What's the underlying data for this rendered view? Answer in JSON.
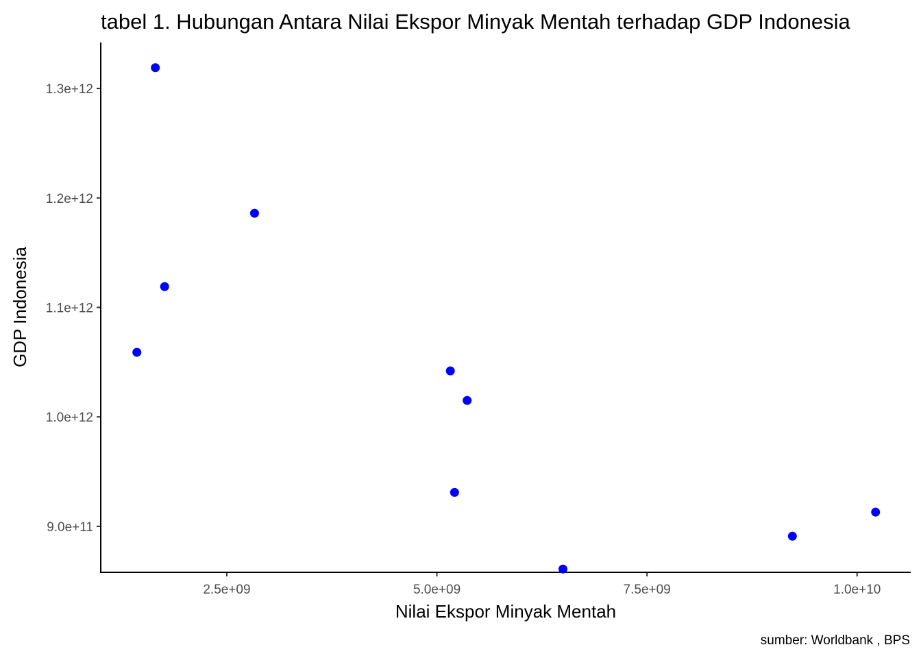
{
  "chart_data": {
    "type": "scatter",
    "title": "tabel 1. Hubungan Antara Nilai Ekspor Minyak Mentah terhadap GDP Indonesia",
    "xlabel": "Nilai Ekspor Minyak Mentah",
    "ylabel": "GDP Indonesia",
    "caption": "sumber: Worldbank , BPS",
    "xlim": [
      1000000000,
      10630000000
    ],
    "ylim": [
      858000000000,
      1342000000000
    ],
    "x_ticks": [
      2500000000,
      5000000000,
      7500000000,
      10000000000
    ],
    "x_tick_labels": [
      "2.5e+09",
      "5.0e+09",
      "7.5e+09",
      "1.0e+10"
    ],
    "y_ticks": [
      900000000000,
      1000000000000,
      1100000000000,
      1200000000000,
      1300000000000
    ],
    "y_tick_labels": [
      "9.0e+11",
      "1.0e+12",
      "1.1e+12",
      "1.2e+12",
      "1.3e+12"
    ],
    "grid": false,
    "point_color": "#0000ff",
    "points": [
      {
        "x": 1650000000,
        "y": 1319000000000
      },
      {
        "x": 2830000000,
        "y": 1186000000000
      },
      {
        "x": 1760000000,
        "y": 1119000000000
      },
      {
        "x": 1430000000,
        "y": 1059000000000
      },
      {
        "x": 5160000000,
        "y": 1042000000000
      },
      {
        "x": 5360000000,
        "y": 1015000000000
      },
      {
        "x": 5210000000,
        "y": 931000000000
      },
      {
        "x": 6500000000,
        "y": 861000000000
      },
      {
        "x": 9230000000,
        "y": 891000000000
      },
      {
        "x": 10220000000,
        "y": 913000000000
      }
    ]
  }
}
